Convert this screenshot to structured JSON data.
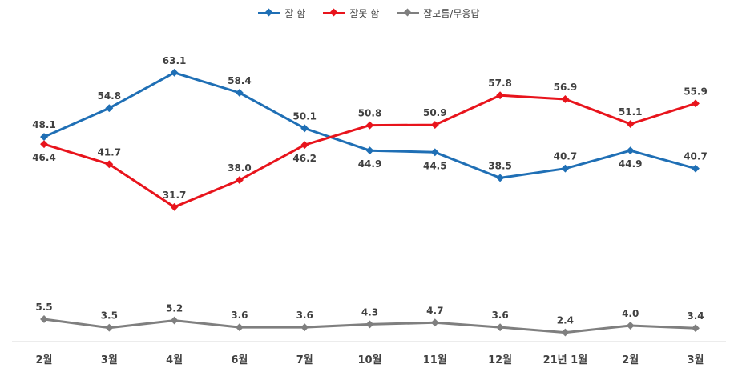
{
  "chart_data": {
    "type": "line",
    "categories": [
      "2월",
      "3월",
      "4월",
      "6월",
      "7월",
      "10월",
      "11월",
      "12월",
      "21년 1월",
      "2월",
      "3월"
    ],
    "series": [
      {
        "name": "잘 함",
        "color": "#1f6fb5",
        "values": [
          48.1,
          54.8,
          63.1,
          58.4,
          50.1,
          44.9,
          44.5,
          38.5,
          40.7,
          44.9,
          40.7
        ]
      },
      {
        "name": "잘못 함",
        "color": "#e8141c",
        "values": [
          46.4,
          41.7,
          31.7,
          38.0,
          46.2,
          50.8,
          50.9,
          57.8,
          56.9,
          51.1,
          55.9
        ]
      },
      {
        "name": "잘모름/무응답",
        "color": "#7f7f7f",
        "values": [
          5.5,
          3.5,
          5.2,
          3.6,
          3.6,
          4.3,
          4.7,
          3.6,
          2.4,
          4.0,
          3.4
        ]
      }
    ],
    "label_positions": [
      [
        "above",
        "above",
        "above",
        "above",
        "above",
        "below",
        "below",
        "above",
        "above",
        "below",
        "above"
      ],
      [
        "below",
        "above",
        "above",
        "above",
        "below",
        "above",
        "above",
        "above",
        "above",
        "above",
        "above"
      ],
      [
        "above",
        "above",
        "above",
        "above",
        "above",
        "above",
        "above",
        "above",
        "above",
        "above",
        "above"
      ]
    ],
    "grid": false,
    "legend_position": "top-center"
  }
}
